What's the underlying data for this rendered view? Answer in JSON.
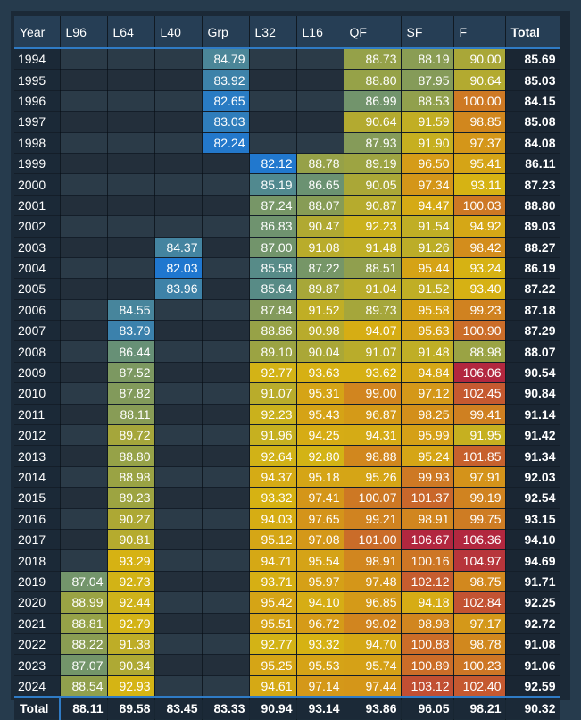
{
  "headers": [
    "Year",
    "L96",
    "L64",
    "L40",
    "Grp",
    "L32",
    "L16",
    "QF",
    "SF",
    "F",
    "Total"
  ],
  "rows": [
    {
      "year": "1994",
      "values": [
        "",
        "",
        "",
        "84.79",
        "",
        "",
        "88.73",
        "88.19",
        "90.00"
      ],
      "total": "85.69"
    },
    {
      "year": "1995",
      "values": [
        "",
        "",
        "",
        "83.92",
        "",
        "",
        "88.80",
        "87.95",
        "90.64"
      ],
      "total": "85.03"
    },
    {
      "year": "1996",
      "values": [
        "",
        "",
        "",
        "82.65",
        "",
        "",
        "86.99",
        "88.53",
        "100.00"
      ],
      "total": "84.15"
    },
    {
      "year": "1997",
      "values": [
        "",
        "",
        "",
        "83.03",
        "",
        "",
        "90.64",
        "91.59",
        "98.85"
      ],
      "total": "85.08"
    },
    {
      "year": "1998",
      "values": [
        "",
        "",
        "",
        "82.24",
        "",
        "",
        "87.93",
        "91.90",
        "97.37"
      ],
      "total": "84.08"
    },
    {
      "year": "1999",
      "values": [
        "",
        "",
        "",
        "",
        "82.12",
        "88.78",
        "89.19",
        "96.50",
        "95.41"
      ],
      "total": "86.11"
    },
    {
      "year": "2000",
      "values": [
        "",
        "",
        "",
        "",
        "85.19",
        "86.65",
        "90.05",
        "97.34",
        "93.11"
      ],
      "total": "87.23"
    },
    {
      "year": "2001",
      "values": [
        "",
        "",
        "",
        "",
        "87.24",
        "88.07",
        "90.87",
        "94.47",
        "100.03"
      ],
      "total": "88.80"
    },
    {
      "year": "2002",
      "values": [
        "",
        "",
        "",
        "",
        "86.83",
        "90.47",
        "92.23",
        "91.54",
        "94.92"
      ],
      "total": "89.03"
    },
    {
      "year": "2003",
      "values": [
        "",
        "",
        "84.37",
        "",
        "87.00",
        "91.08",
        "91.48",
        "91.26",
        "98.42"
      ],
      "total": "88.27"
    },
    {
      "year": "2004",
      "values": [
        "",
        "",
        "82.03",
        "",
        "85.58",
        "87.22",
        "88.51",
        "95.44",
        "93.24"
      ],
      "total": "86.19"
    },
    {
      "year": "2005",
      "values": [
        "",
        "",
        "83.96",
        "",
        "85.64",
        "89.87",
        "91.04",
        "91.52",
        "93.40"
      ],
      "total": "87.22"
    },
    {
      "year": "2006",
      "values": [
        "",
        "84.55",
        "",
        "",
        "87.84",
        "91.52",
        "89.73",
        "95.58",
        "99.23"
      ],
      "total": "87.18"
    },
    {
      "year": "2007",
      "values": [
        "",
        "83.79",
        "",
        "",
        "88.86",
        "90.98",
        "94.07",
        "95.63",
        "100.90"
      ],
      "total": "87.29"
    },
    {
      "year": "2008",
      "values": [
        "",
        "86.44",
        "",
        "",
        "89.10",
        "90.04",
        "91.07",
        "91.48",
        "88.98"
      ],
      "total": "88.07"
    },
    {
      "year": "2009",
      "values": [
        "",
        "87.52",
        "",
        "",
        "92.77",
        "93.63",
        "93.62",
        "94.84",
        "106.06"
      ],
      "total": "90.54"
    },
    {
      "year": "2010",
      "values": [
        "",
        "87.82",
        "",
        "",
        "91.07",
        "95.31",
        "99.00",
        "97.12",
        "102.45"
      ],
      "total": "90.84"
    },
    {
      "year": "2011",
      "values": [
        "",
        "88.11",
        "",
        "",
        "92.23",
        "95.43",
        "96.87",
        "98.25",
        "99.41"
      ],
      "total": "91.14"
    },
    {
      "year": "2012",
      "values": [
        "",
        "89.72",
        "",
        "",
        "91.96",
        "94.25",
        "94.31",
        "95.99",
        "91.95"
      ],
      "total": "91.42"
    },
    {
      "year": "2013",
      "values": [
        "",
        "88.80",
        "",
        "",
        "92.64",
        "92.80",
        "98.88",
        "95.24",
        "101.85"
      ],
      "total": "91.34"
    },
    {
      "year": "2014",
      "values": [
        "",
        "88.98",
        "",
        "",
        "94.37",
        "95.18",
        "95.26",
        "99.93",
        "97.91"
      ],
      "total": "92.03"
    },
    {
      "year": "2015",
      "values": [
        "",
        "89.23",
        "",
        "",
        "93.32",
        "97.41",
        "100.07",
        "101.37",
        "99.19"
      ],
      "total": "92.54"
    },
    {
      "year": "2016",
      "values": [
        "",
        "90.27",
        "",
        "",
        "94.03",
        "97.65",
        "99.21",
        "98.91",
        "99.75"
      ],
      "total": "93.15"
    },
    {
      "year": "2017",
      "values": [
        "",
        "90.81",
        "",
        "",
        "95.12",
        "97.08",
        "101.00",
        "106.67",
        "106.36"
      ],
      "total": "94.10"
    },
    {
      "year": "2018",
      "values": [
        "",
        "93.29",
        "",
        "",
        "94.71",
        "95.54",
        "98.91",
        "100.16",
        "104.97"
      ],
      "total": "94.69"
    },
    {
      "year": "2019",
      "values": [
        "87.04",
        "92.73",
        "",
        "",
        "93.71",
        "95.97",
        "97.48",
        "102.12",
        "98.75"
      ],
      "total": "91.71"
    },
    {
      "year": "2020",
      "values": [
        "88.99",
        "92.44",
        "",
        "",
        "95.42",
        "94.10",
        "96.85",
        "94.18",
        "102.84"
      ],
      "total": "92.25"
    },
    {
      "year": "2021",
      "values": [
        "88.81",
        "92.79",
        "",
        "",
        "95.51",
        "96.72",
        "99.02",
        "98.98",
        "97.17"
      ],
      "total": "92.72"
    },
    {
      "year": "2022",
      "values": [
        "88.22",
        "91.38",
        "",
        "",
        "92.77",
        "93.32",
        "94.70",
        "100.88",
        "98.78"
      ],
      "total": "91.08"
    },
    {
      "year": "2023",
      "values": [
        "87.07",
        "90.34",
        "",
        "",
        "95.25",
        "95.53",
        "95.74",
        "100.89",
        "100.23"
      ],
      "total": "91.06"
    },
    {
      "year": "2024",
      "values": [
        "88.54",
        "92.93",
        "",
        "",
        "94.61",
        "97.14",
        "97.44",
        "103.12",
        "102.40"
      ],
      "total": "92.59"
    }
  ],
  "footer": {
    "label": "Total",
    "values": [
      "88.11",
      "89.58",
      "83.45",
      "83.33",
      "90.94",
      "93.14",
      "93.86",
      "96.05",
      "98.21"
    ],
    "total": "90.32"
  },
  "color_scale": {
    "stops": [
      {
        "value": 82,
        "color": "#1f77d0"
      },
      {
        "value": 86,
        "color": "#5e8d7f"
      },
      {
        "value": 89,
        "color": "#9aa344"
      },
      {
        "value": 93,
        "color": "#d6b413"
      },
      {
        "value": 98,
        "color": "#d4921a"
      },
      {
        "value": 102,
        "color": "#c75f2e"
      },
      {
        "value": 106,
        "color": "#b2273f"
      }
    ]
  }
}
